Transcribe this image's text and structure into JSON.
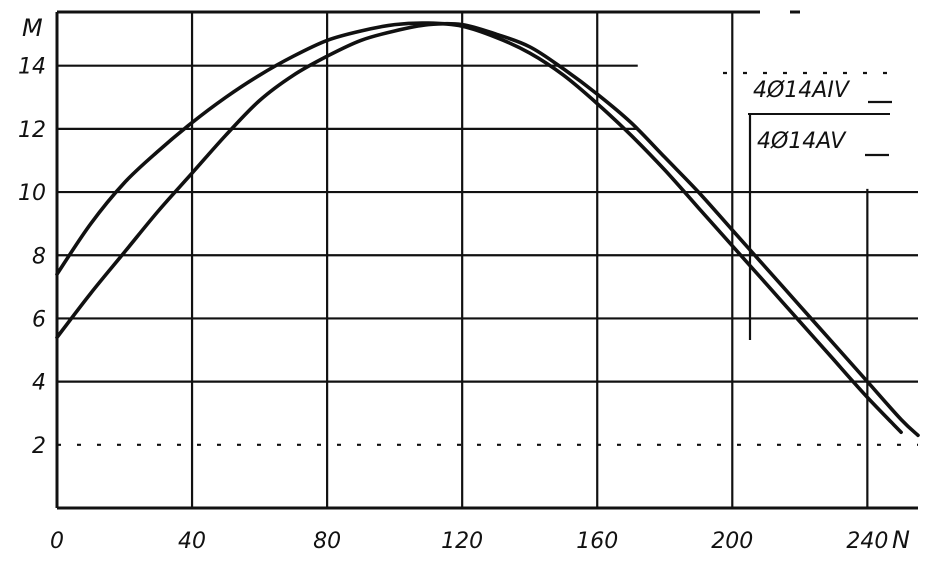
{
  "chart_data": {
    "type": "line",
    "xlabel": "N",
    "ylabel": "M",
    "xlim": [
      0,
      255
    ],
    "ylim": [
      0,
      15.7
    ],
    "x_ticks": [
      "0",
      "40",
      "80",
      "120",
      "160",
      "200",
      "240"
    ],
    "y_ticks": [
      "2",
      "4",
      "6",
      "8",
      "10",
      "12",
      "14"
    ],
    "grid": true,
    "legend_position": "top-right",
    "series": [
      {
        "name": "4Ø14AIV",
        "x": [
          0,
          10,
          20,
          30,
          40,
          50,
          60,
          70,
          80,
          90,
          100,
          110,
          120,
          130,
          140,
          150,
          160,
          170,
          180,
          190,
          200,
          210,
          220,
          230,
          240,
          250
        ],
        "y": [
          7.4,
          9.0,
          10.3,
          11.3,
          12.2,
          13.0,
          13.7,
          14.3,
          14.8,
          15.1,
          15.3,
          15.35,
          15.25,
          14.9,
          14.4,
          13.7,
          12.8,
          11.8,
          10.7,
          9.5,
          8.3,
          7.1,
          5.9,
          4.7,
          3.5,
          2.4
        ]
      },
      {
        "name": "4Ø14AV",
        "x": [
          0,
          10,
          20,
          30,
          40,
          50,
          60,
          70,
          80,
          90,
          100,
          110,
          120,
          130,
          140,
          150,
          160,
          170,
          180,
          190,
          200,
          210,
          220,
          230,
          240,
          250,
          255
        ],
        "y": [
          5.4,
          6.8,
          8.1,
          9.4,
          10.6,
          11.8,
          12.9,
          13.7,
          14.3,
          14.8,
          15.1,
          15.3,
          15.3,
          15.0,
          14.6,
          13.9,
          13.1,
          12.2,
          11.1,
          10.0,
          8.8,
          7.6,
          6.4,
          5.2,
          4.0,
          2.8,
          2.3
        ]
      }
    ]
  }
}
